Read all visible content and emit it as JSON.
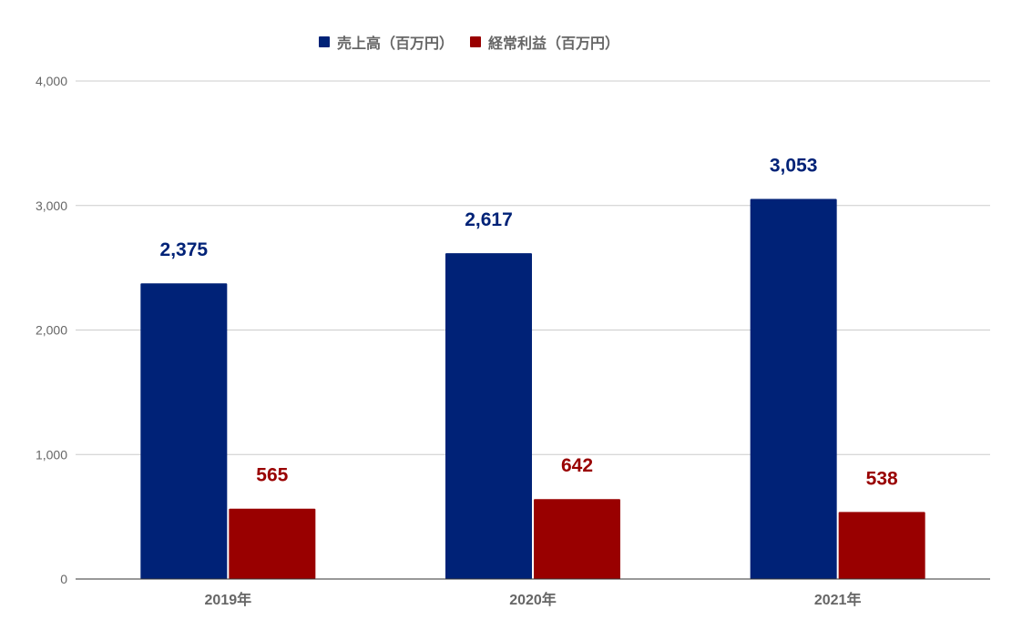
{
  "chart_data": {
    "type": "bar",
    "categories": [
      "2019年",
      "2020年",
      "2021年"
    ],
    "series": [
      {
        "name": "売上高（百万円）",
        "values": [
          2375,
          2617,
          3053
        ],
        "color": "#002277"
      },
      {
        "name": "経常利益（百万円）",
        "values": [
          565,
          642,
          538
        ],
        "color": "#990000"
      }
    ],
    "data_labels": {
      "sales": [
        "2,375",
        "2,617",
        "3,053"
      ],
      "profit": [
        "565",
        "642",
        "538"
      ]
    },
    "y_ticks": [
      "0",
      "1,000",
      "2,000",
      "3,000",
      "4,000"
    ],
    "ylim": [
      0,
      4000
    ],
    "legend_position": "top",
    "grid": true
  }
}
